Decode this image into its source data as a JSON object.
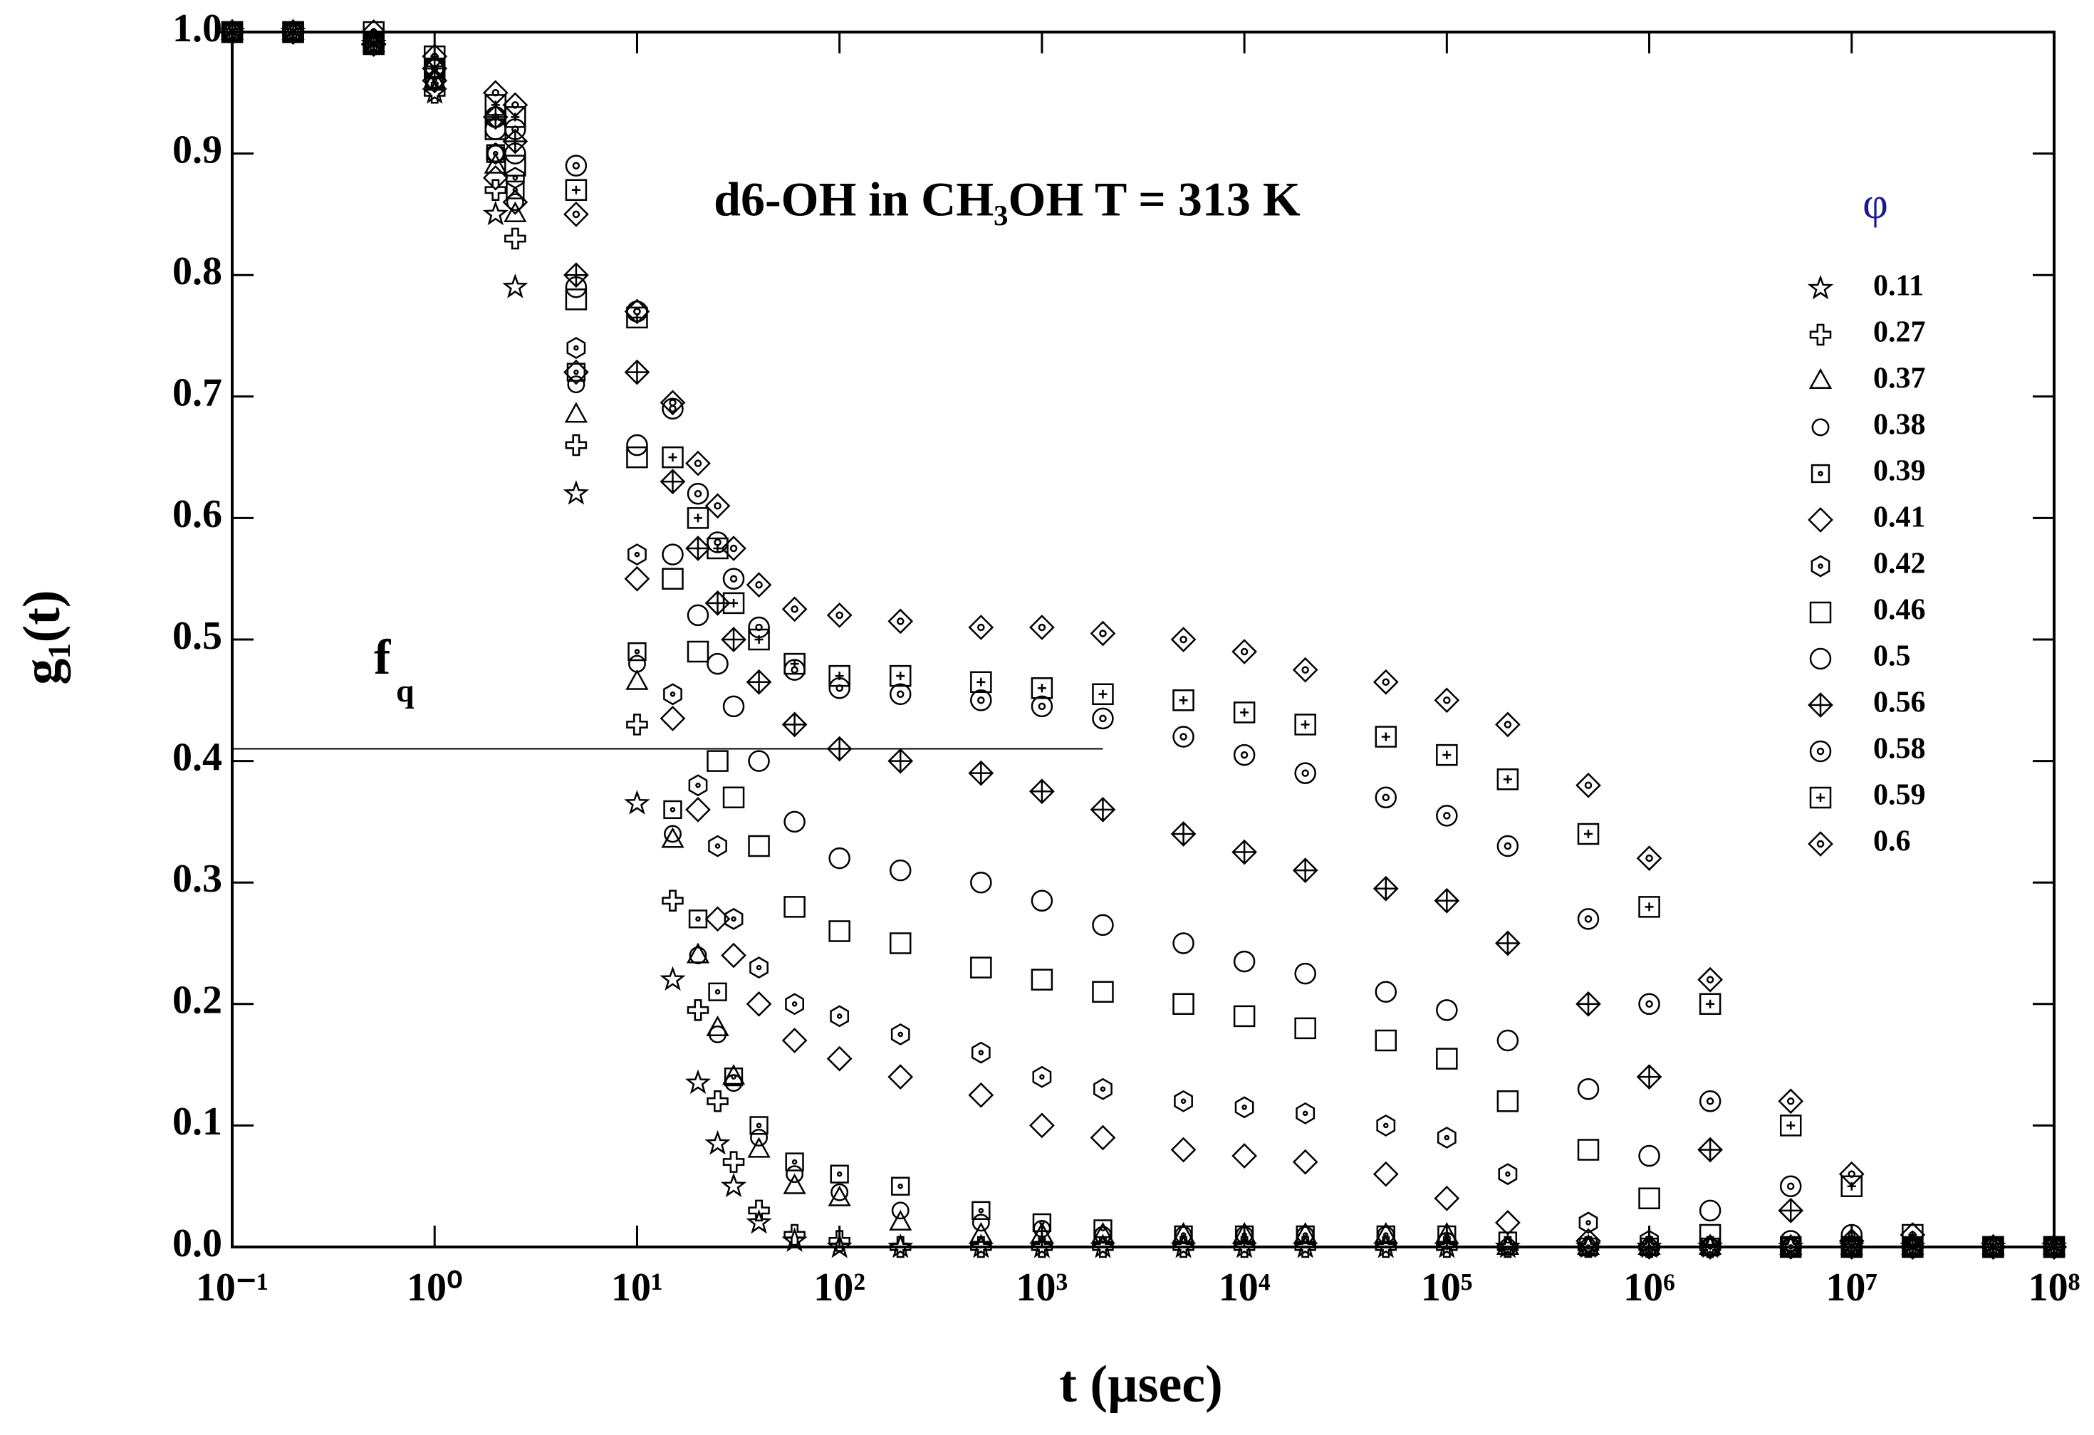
{
  "chart_data": {
    "type": "scatter",
    "title": "d6-OH in CH₃OH T = 313 K",
    "x_label": "t (µsec)",
    "y_label": "g₁(t)",
    "annotation": {
      "text": "f",
      "subscript": "q"
    },
    "reference_line": {
      "y": 0.41,
      "x": [
        0.1,
        2000
      ]
    },
    "legend_title": "φ",
    "legend_title_color": "#1a1a8c",
    "legend_position": "upper right",
    "xscale": "log",
    "xlim": [
      0.1,
      100000000
    ],
    "xticks": [
      {
        "value": 0.1,
        "label": "10⁻¹"
      },
      {
        "value": 1,
        "label": "10⁰"
      },
      {
        "value": 10,
        "label": "10¹"
      },
      {
        "value": 100,
        "label": "10²"
      },
      {
        "value": 1000,
        "label": "10³"
      },
      {
        "value": 10000,
        "label": "10⁴"
      },
      {
        "value": 100000,
        "label": "10⁵"
      },
      {
        "value": 1000000,
        "label": "10⁶"
      },
      {
        "value": 10000000,
        "label": "10⁷"
      },
      {
        "value": 100000000,
        "label": "10⁸"
      }
    ],
    "ylim": [
      0,
      1
    ],
    "yticks": [
      {
        "value": 0,
        "label": "0.0"
      },
      0.1,
      0.2,
      0.3,
      0.4,
      0.5,
      0.6,
      0.7,
      0.8,
      0.9,
      {
        "value": 1,
        "label": "1.0"
      }
    ],
    "x": [
      0.1,
      0.2,
      0.5,
      1,
      2,
      2.5,
      5,
      10,
      15,
      20,
      25,
      30,
      40,
      60,
      100,
      200,
      500,
      1000,
      2000,
      5000,
      10000,
      20000,
      50000,
      100000,
      200000,
      500000,
      1000000,
      2000000,
      5000000,
      10000000,
      20000000,
      50000000,
      100000000
    ],
    "series": [
      {
        "name": "0.11",
        "marker": "star",
        "color": "#000000",
        "values": [
          1,
          1,
          0.99,
          0.95,
          0.85,
          0.79,
          0.62,
          0.365,
          0.22,
          0.135,
          0.085,
          0.05,
          0.02,
          0.005,
          0,
          0,
          0,
          0,
          0,
          0,
          0,
          0,
          0,
          0,
          0,
          0,
          0,
          0,
          0,
          0,
          0,
          0,
          0
        ]
      },
      {
        "name": "0.27",
        "marker": "plus",
        "color": "#000000",
        "values": [
          1,
          1,
          0.99,
          0.95,
          0.87,
          0.83,
          0.66,
          0.43,
          0.285,
          0.195,
          0.12,
          0.07,
          0.03,
          0.01,
          0.005,
          0,
          0,
          0,
          0,
          0,
          0,
          0,
          0,
          0,
          0,
          0,
          0,
          0,
          0,
          0,
          0,
          0,
          0
        ]
      },
      {
        "name": "0.37",
        "marker": "triangle",
        "color": "#000000",
        "values": [
          1,
          1,
          0.99,
          0.96,
          0.89,
          0.85,
          0.685,
          0.465,
          0.335,
          0.24,
          0.18,
          0.14,
          0.08,
          0.05,
          0.04,
          0.02,
          0.01,
          0.01,
          0.01,
          0.01,
          0.01,
          0.01,
          0.01,
          0.01,
          0,
          0,
          0,
          0,
          0,
          0,
          0,
          0,
          0
        ]
      },
      {
        "name": "0.38",
        "marker": "circle-small",
        "color": "#000000",
        "values": [
          1,
          1,
          0.99,
          0.96,
          0.9,
          0.86,
          0.71,
          0.48,
          0.34,
          0.24,
          0.175,
          0.135,
          0.09,
          0.06,
          0.045,
          0.03,
          0.02,
          0.015,
          0.01,
          0.01,
          0.01,
          0.01,
          0.01,
          0.005,
          0,
          0,
          0,
          0,
          0,
          0,
          0,
          0,
          0
        ]
      },
      {
        "name": "0.39",
        "marker": "square-dot",
        "color": "#000000",
        "values": [
          1,
          1,
          0.99,
          0.97,
          0.9,
          0.87,
          0.72,
          0.49,
          0.36,
          0.27,
          0.21,
          0.14,
          0.1,
          0.07,
          0.06,
          0.05,
          0.03,
          0.02,
          0.015,
          0.01,
          0.01,
          0.01,
          0.01,
          0.01,
          0.005,
          0,
          0,
          0,
          0,
          0,
          0,
          0,
          0
        ]
      },
      {
        "name": "0.41",
        "marker": "diamond",
        "color": "#000000",
        "values": [
          1,
          1,
          0.99,
          0.96,
          0.88,
          0.86,
          0.72,
          0.55,
          0.435,
          0.36,
          0.27,
          0.24,
          0.2,
          0.17,
          0.155,
          0.14,
          0.125,
          0.1,
          0.09,
          0.08,
          0.075,
          0.07,
          0.06,
          0.04,
          0.02,
          0.005,
          0,
          0,
          0,
          0,
          0,
          0,
          0
        ]
      },
      {
        "name": "0.42",
        "marker": "hexagon",
        "color": "#000000",
        "values": [
          1,
          1,
          0.99,
          0.96,
          0.9,
          0.88,
          0.74,
          0.57,
          0.455,
          0.38,
          0.33,
          0.27,
          0.23,
          0.2,
          0.19,
          0.175,
          0.16,
          0.14,
          0.13,
          0.12,
          0.115,
          0.11,
          0.1,
          0.09,
          0.06,
          0.02,
          0.005,
          0,
          0,
          0,
          0,
          0,
          0
        ]
      },
      {
        "name": "0.46",
        "marker": "square",
        "color": "#000000",
        "values": [
          1,
          1,
          0.99,
          0.97,
          0.92,
          0.89,
          0.78,
          0.65,
          0.55,
          0.49,
          0.4,
          0.37,
          0.33,
          0.28,
          0.26,
          0.25,
          0.23,
          0.22,
          0.21,
          0.2,
          0.19,
          0.18,
          0.17,
          0.155,
          0.12,
          0.08,
          0.04,
          0.01,
          0,
          0,
          0,
          0,
          0
        ]
      },
      {
        "name": "0.5",
        "marker": "circle",
        "color": "#000000",
        "values": [
          1,
          1,
          0.99,
          0.97,
          0.92,
          0.9,
          0.79,
          0.66,
          0.57,
          0.52,
          0.48,
          0.445,
          0.4,
          0.35,
          0.32,
          0.31,
          0.3,
          0.285,
          0.265,
          0.25,
          0.235,
          0.225,
          0.21,
          0.195,
          0.17,
          0.13,
          0.075,
          0.03,
          0.005,
          0,
          0,
          0,
          0
        ]
      },
      {
        "name": "0.56",
        "marker": "diamond-plus",
        "color": "#000000",
        "values": [
          1,
          1,
          0.99,
          0.97,
          0.93,
          0.91,
          0.8,
          0.72,
          0.63,
          0.575,
          0.53,
          0.5,
          0.465,
          0.43,
          0.41,
          0.4,
          0.39,
          0.375,
          0.36,
          0.34,
          0.325,
          0.31,
          0.295,
          0.285,
          0.25,
          0.2,
          0.14,
          0.08,
          0.03,
          0.005,
          0,
          0,
          0
        ]
      },
      {
        "name": "0.58",
        "marker": "circle-dot",
        "color": "#000000",
        "values": [
          1,
          1,
          0.99,
          0.97,
          0.93,
          0.92,
          0.89,
          0.77,
          0.69,
          0.62,
          0.58,
          0.55,
          0.51,
          0.475,
          0.46,
          0.455,
          0.45,
          0.445,
          0.435,
          0.42,
          0.405,
          0.39,
          0.37,
          0.355,
          0.33,
          0.27,
          0.2,
          0.12,
          0.05,
          0.01,
          0,
          0,
          0
        ]
      },
      {
        "name": "0.59",
        "marker": "square-plus",
        "color": "#000000",
        "values": [
          1,
          1,
          1,
          0.98,
          0.94,
          0.93,
          0.87,
          0.765,
          0.65,
          0.6,
          0.575,
          0.53,
          0.5,
          0.48,
          0.47,
          0.47,
          0.465,
          0.46,
          0.455,
          0.45,
          0.44,
          0.43,
          0.42,
          0.405,
          0.385,
          0.34,
          0.28,
          0.2,
          0.1,
          0.05,
          0.01,
          0,
          0
        ]
      },
      {
        "name": "0.6",
        "marker": "diamond-dot",
        "color": "#000000",
        "values": [
          1,
          1,
          1,
          0.98,
          0.95,
          0.94,
          0.85,
          0.77,
          0.695,
          0.645,
          0.61,
          0.575,
          0.545,
          0.525,
          0.52,
          0.515,
          0.51,
          0.51,
          0.505,
          0.5,
          0.49,
          0.475,
          0.465,
          0.45,
          0.43,
          0.38,
          0.32,
          0.22,
          0.12,
          0.06,
          0.01,
          0,
          0
        ]
      }
    ]
  }
}
